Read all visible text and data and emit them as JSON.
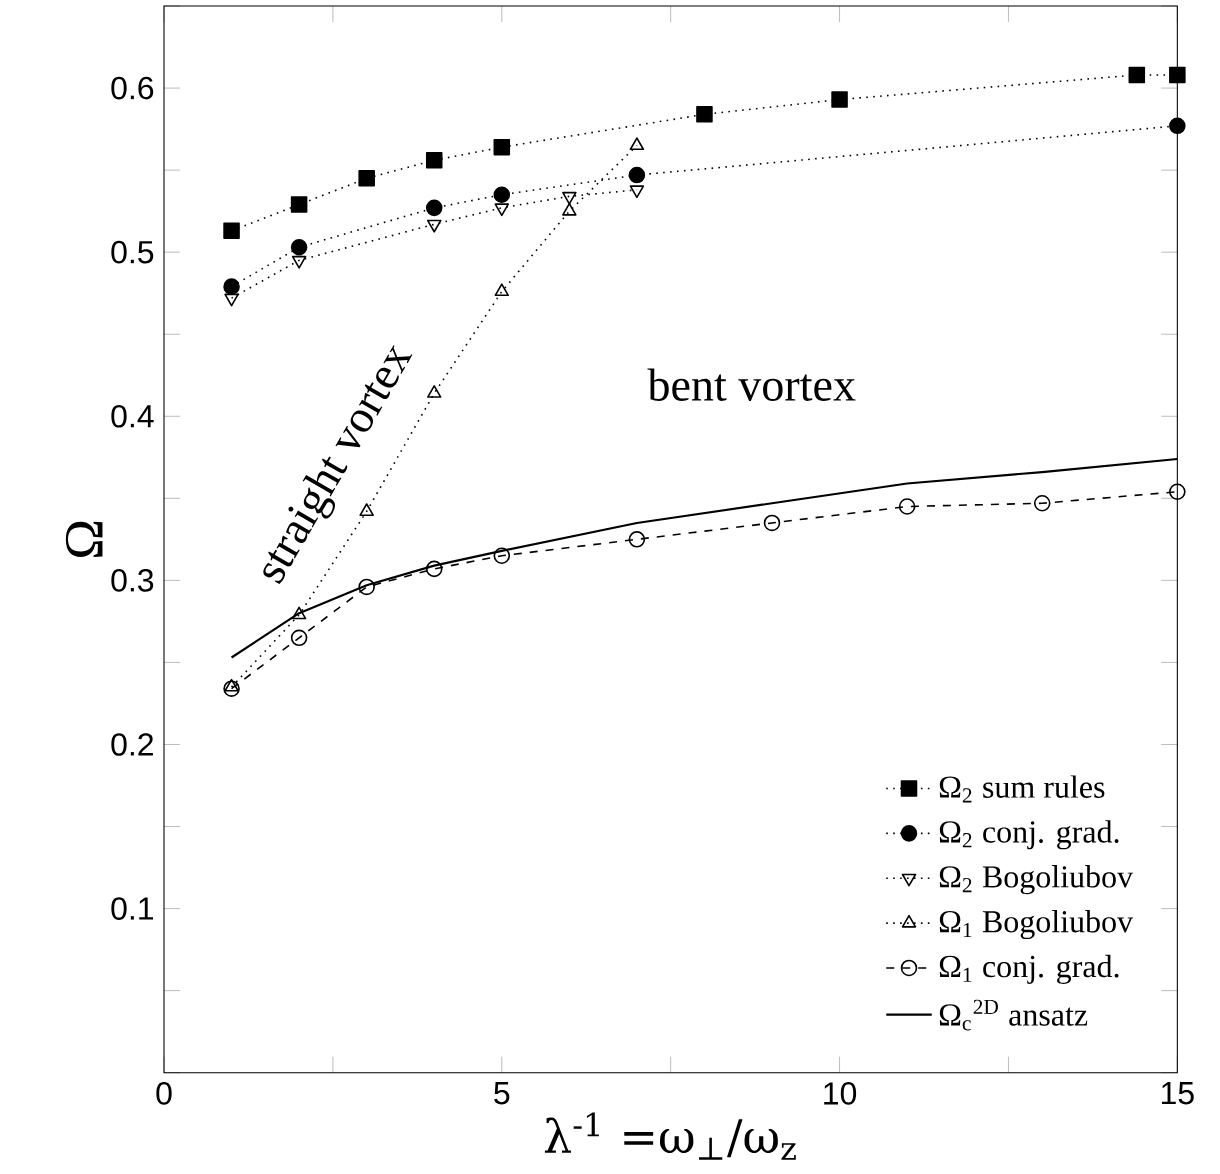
{
  "chart_data": {
    "type": "line",
    "xlabel": "λ$^{-1}$ =ω$_{⊥}$/ω$_{z}$",
    "ylabel": "Ω",
    "xlim": [
      0,
      15
    ],
    "ylim": [
      0,
      0.65
    ],
    "xticks": [
      0,
      {
        "value": 2.5,
        "label": null
      },
      5,
      {
        "value": 7.5,
        "label": null
      },
      10,
      {
        "value": 12.5,
        "label": null
      },
      15
    ],
    "yticks": [
      {
        "value": 0,
        "label": null
      },
      {
        "value": 0.05,
        "label": null
      },
      0.1,
      {
        "value": 0.15,
        "label": null
      },
      0.2,
      {
        "value": 0.25,
        "label": null
      },
      0.3,
      {
        "value": 0.35,
        "label": null
      },
      0.4,
      {
        "value": 0.45,
        "label": null
      },
      0.5,
      {
        "value": 0.55,
        "label": null
      },
      0.6,
      {
        "value": 0.65,
        "label": null
      }
    ],
    "grid": false,
    "legend": "bottom right",
    "annotations": [
      "straight vortex",
      "bent vortex"
    ],
    "series": [
      {
        "name": "Ω$_{2}$ sum rules",
        "color": "#000000",
        "marker": "square",
        "line_style": "dotted",
        "x": [
          1,
          2,
          3,
          4,
          5,
          8,
          10,
          14.4,
          15
        ],
        "values": [
          0.513,
          0.529,
          0.545,
          0.556,
          0.564,
          0.584,
          0.593,
          0.608,
          0.608
        ]
      },
      {
        "name": "Ω$_{2}$ conj. grad.",
        "color": "#000000",
        "marker": "circle",
        "line_style": "dotted",
        "x": [
          1,
          2,
          4,
          5,
          7,
          15
        ],
        "values": [
          0.479,
          0.503,
          0.527,
          0.535,
          0.547,
          0.577
        ]
      },
      {
        "name": "Ω$_{2}$ Bogoliubov",
        "color": "#000000",
        "marker": "triangle_down_open",
        "line_style": "dotted",
        "x": [
          1,
          2,
          4,
          5,
          6,
          7
        ],
        "values": [
          0.472,
          0.495,
          0.517,
          0.527,
          0.534,
          0.538
        ]
      },
      {
        "name": "Ω$_{1}$ Bogoliubov",
        "color": "#000000",
        "marker": "triangle_open",
        "line_style": "dotted",
        "x": [
          1,
          2,
          3,
          4,
          5,
          6,
          7
        ],
        "values": [
          0.235,
          0.279,
          0.342,
          0.414,
          0.476,
          0.525,
          0.565
        ]
      },
      {
        "name": "Ω$_{1}$ conj. grad.",
        "color": "#000000",
        "marker": "circle_open",
        "line_style": "dashed",
        "x": [
          1,
          2,
          3,
          4,
          5,
          7,
          9,
          11,
          13,
          15
        ],
        "values": [
          0.234,
          0.265,
          0.296,
          0.307,
          0.315,
          0.325,
          0.335,
          0.345,
          0.347,
          0.354
        ]
      },
      {
        "name": "Ω$_{c}$$^{2D}$ ansatz",
        "color": "#000000",
        "marker": "none",
        "line_style": "solid",
        "x": [
          1,
          2,
          3,
          4,
          5,
          7,
          9,
          11,
          13,
          15
        ],
        "values": [
          0.253,
          0.28,
          0.297,
          0.309,
          0.318,
          0.335,
          0.347,
          0.359,
          0.366,
          0.374
        ]
      }
    ]
  }
}
